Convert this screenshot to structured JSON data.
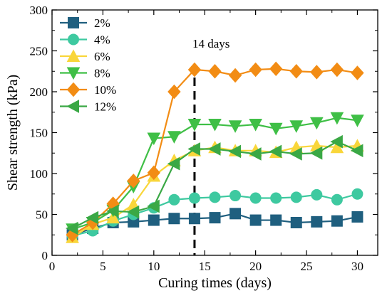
{
  "chart_data": {
    "type": "line",
    "xlabel": "Curing times (days)",
    "ylabel": "Shear strength (kPa)",
    "xlim": [
      0,
      32
    ],
    "ylim": [
      0,
      300
    ],
    "xticks": [
      0,
      5,
      10,
      15,
      20,
      25,
      30
    ],
    "yticks": [
      0,
      50,
      100,
      150,
      200,
      250,
      300
    ],
    "xtick_labels": [
      "0",
      "5",
      "10",
      "15",
      "20",
      "25",
      "30"
    ],
    "ytick_labels": [
      "0",
      "50",
      "100",
      "150",
      "200",
      "250",
      "300"
    ],
    "grid": false,
    "legend_position": "top-left",
    "annotation": {
      "x": 14,
      "label": "14 days",
      "style": "dashed-vertical-line"
    },
    "x": [
      2,
      4,
      6,
      8,
      10,
      12,
      14,
      16,
      18,
      20,
      22,
      24,
      26,
      28,
      30
    ],
    "series": [
      {
        "name": "2%",
        "color": "#1f5f7f",
        "marker": "square",
        "values": [
          25,
          33,
          40,
          41,
          43,
          45,
          45,
          46,
          51,
          43,
          43,
          40,
          41,
          42,
          47
        ]
      },
      {
        "name": "4%",
        "color": "#3ec9a0",
        "marker": "circle",
        "values": [
          24,
          30,
          42,
          50,
          58,
          68,
          70,
          71,
          73,
          70,
          70,
          71,
          74,
          68,
          75
        ]
      },
      {
        "name": "6%",
        "color": "#f9d63a",
        "marker": "triangle-up",
        "values": [
          22,
          38,
          46,
          62,
          97,
          116,
          128,
          132,
          128,
          128,
          126,
          132,
          134,
          132,
          134
        ]
      },
      {
        "name": "8%",
        "color": "#3fbf46",
        "marker": "triangle-down",
        "values": [
          32,
          40,
          55,
          84,
          143,
          145,
          160,
          160,
          158,
          160,
          155,
          158,
          162,
          168,
          165
        ]
      },
      {
        "name": "10%",
        "color": "#f28c14",
        "marker": "diamond",
        "values": [
          25,
          40,
          63,
          91,
          101,
          200,
          227,
          225,
          220,
          227,
          228,
          225,
          224,
          227,
          223
        ]
      },
      {
        "name": "12%",
        "color": "#3aa845",
        "marker": "triangle-left",
        "values": [
          33,
          46,
          54,
          53,
          60,
          112,
          130,
          130,
          127,
          124,
          127,
          124,
          125,
          139,
          128
        ]
      }
    ]
  }
}
